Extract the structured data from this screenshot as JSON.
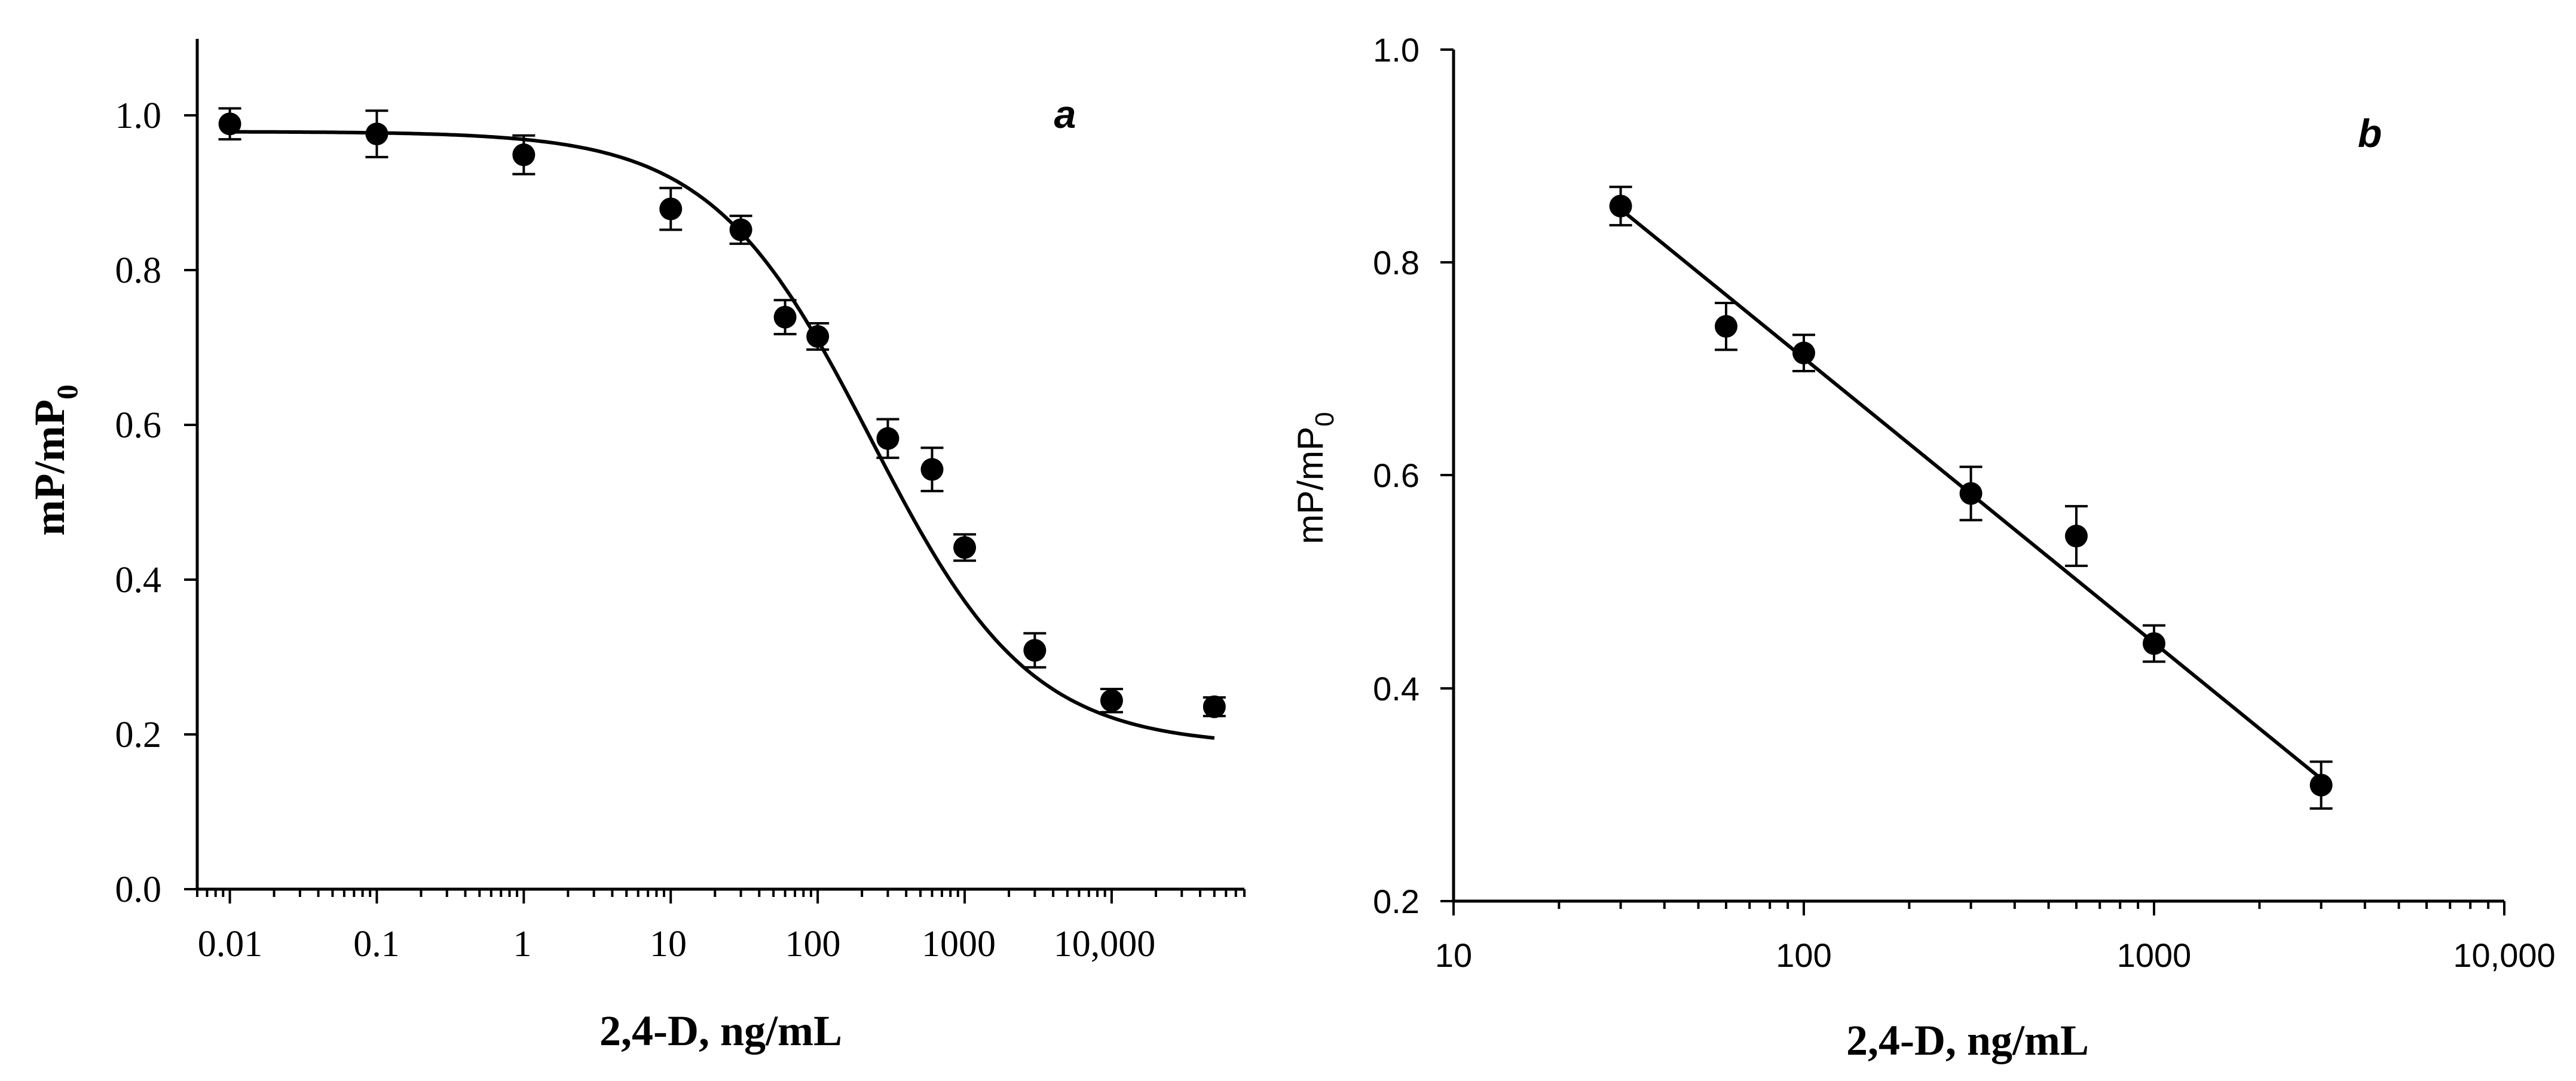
{
  "chart_data": [
    {
      "panel": "a",
      "type": "scatter",
      "x_scale": "log",
      "xlabel": "2,4-D, ng/mL",
      "ylabel": "mP/mP",
      "ylabel_subscript": "0",
      "xlim": [
        0.006,
        80000
      ],
      "ylim": [
        0.0,
        1.1
      ],
      "x_ticks": [
        0.01,
        0.1,
        1,
        10,
        100,
        1000,
        10000
      ],
      "x_tick_labels": [
        "0.01",
        "0.1",
        "1",
        "10",
        "100",
        "1000",
        "10,000"
      ],
      "y_ticks": [
        0.0,
        0.2,
        0.4,
        0.6,
        0.8,
        1.0
      ],
      "y_tick_labels": [
        "0.0",
        "0.2",
        "0.4",
        "0.6",
        "0.8",
        "1.0"
      ],
      "points": [
        {
          "x": 0.01,
          "y": 0.99,
          "err": 0.02
        },
        {
          "x": 0.1,
          "y": 0.977,
          "err": 0.03
        },
        {
          "x": 1,
          "y": 0.95,
          "err": 0.025
        },
        {
          "x": 10,
          "y": 0.88,
          "err": 0.027
        },
        {
          "x": 30,
          "y": 0.853,
          "err": 0.018
        },
        {
          "x": 60,
          "y": 0.74,
          "err": 0.022
        },
        {
          "x": 100,
          "y": 0.715,
          "err": 0.017
        },
        {
          "x": 300,
          "y": 0.583,
          "err": 0.025
        },
        {
          "x": 600,
          "y": 0.543,
          "err": 0.028
        },
        {
          "x": 1000,
          "y": 0.442,
          "err": 0.017
        },
        {
          "x": 3000,
          "y": 0.309,
          "err": 0.022
        },
        {
          "x": 10000,
          "y": 0.244,
          "err": 0.015
        },
        {
          "x": 50000,
          "y": 0.236,
          "err": 0.012
        }
      ],
      "fit": {
        "model": "4PL",
        "top": 0.98,
        "bottom": 0.185,
        "ic50": 230,
        "hill": 0.8,
        "x_range": [
          0.01,
          50000
        ]
      }
    },
    {
      "panel": "b",
      "type": "scatter",
      "x_scale": "log",
      "xlabel": "2,4-D, ng/mL",
      "ylabel": "mP/mP",
      "ylabel_subscript": "0",
      "xlim": [
        10,
        10000
      ],
      "ylim": [
        0.2,
        1.0
      ],
      "x_ticks": [
        10,
        100,
        1000,
        10000
      ],
      "x_tick_labels": [
        "10",
        "100",
        "1000",
        "10,000"
      ],
      "y_ticks": [
        0.2,
        0.4,
        0.6,
        0.8,
        1.0
      ],
      "y_tick_labels": [
        "0.2",
        "0.4",
        "0.6",
        "0.8",
        "1.0"
      ],
      "points": [
        {
          "x": 30,
          "y": 0.853,
          "err": 0.018
        },
        {
          "x": 60,
          "y": 0.74,
          "err": 0.022
        },
        {
          "x": 100,
          "y": 0.715,
          "err": 0.017
        },
        {
          "x": 300,
          "y": 0.583,
          "err": 0.025
        },
        {
          "x": 600,
          "y": 0.543,
          "err": 0.028
        },
        {
          "x": 1000,
          "y": 0.442,
          "err": 0.017
        },
        {
          "x": 3000,
          "y": 0.309,
          "err": 0.022
        }
      ],
      "fit": {
        "model": "linear-log",
        "x_range": [
          30,
          3000
        ],
        "y_at_start": 0.85,
        "y_at_end": 0.315
      }
    }
  ]
}
